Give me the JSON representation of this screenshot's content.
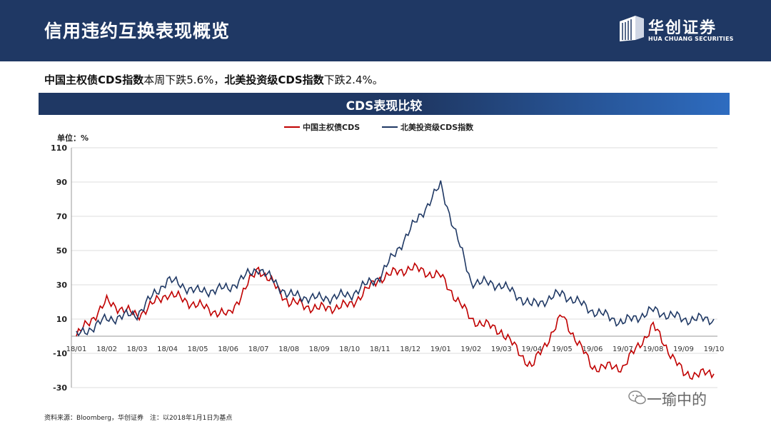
{
  "header": {
    "title": "信用违约互换表现概览"
  },
  "logo": {
    "name_cn": "华创证券",
    "name_en": "HUA CHUANG SECURITIES"
  },
  "subline": {
    "part1": "中国主权债CDS指数",
    "part2": "本周下跌5.6%，",
    "part3": "北美投资级CDS指数",
    "part4": "下跌2.4%。"
  },
  "banner": {
    "title": "CDS表现比较"
  },
  "footer": {
    "source": "资料来源：Bloomberg，华创证券　注：以2018年1月1日为基点"
  },
  "watermark": {
    "text": "一瑜中的"
  },
  "colors": {
    "china": "#c00000",
    "na": "#1f3864"
  },
  "chart_data": {
    "type": "line",
    "title": "CDS表现比较",
    "ylabel": "单位：%",
    "ylim": [
      -30,
      110
    ],
    "yticks": [
      -30,
      -10,
      10,
      30,
      50,
      70,
      90,
      110
    ],
    "categories": [
      "18/01",
      "18/02",
      "18/03",
      "18/04",
      "18/05",
      "18/06",
      "18/07",
      "18/08",
      "18/09",
      "18/10",
      "18/11",
      "18/12",
      "19/01",
      "19/02",
      "19/03",
      "19/04",
      "19/05",
      "19/06",
      "19/07",
      "19/08",
      "19/09",
      "19/10"
    ],
    "series": [
      {
        "name": "中国主权债CDS",
        "color": "#c00000",
        "values": [
          0,
          20,
          12,
          25,
          18,
          12,
          40,
          20,
          16,
          18,
          34,
          40,
          35,
          10,
          3,
          -18,
          12,
          -18,
          -18,
          6,
          -22,
          -22
        ]
      },
      {
        "name": "北美投资级CDS指数",
        "color": "#1f3864",
        "values": [
          0,
          10,
          13,
          33,
          26,
          28,
          40,
          24,
          22,
          24,
          35,
          62,
          88,
          32,
          30,
          18,
          25,
          15,
          8,
          15,
          10,
          10
        ]
      }
    ]
  }
}
